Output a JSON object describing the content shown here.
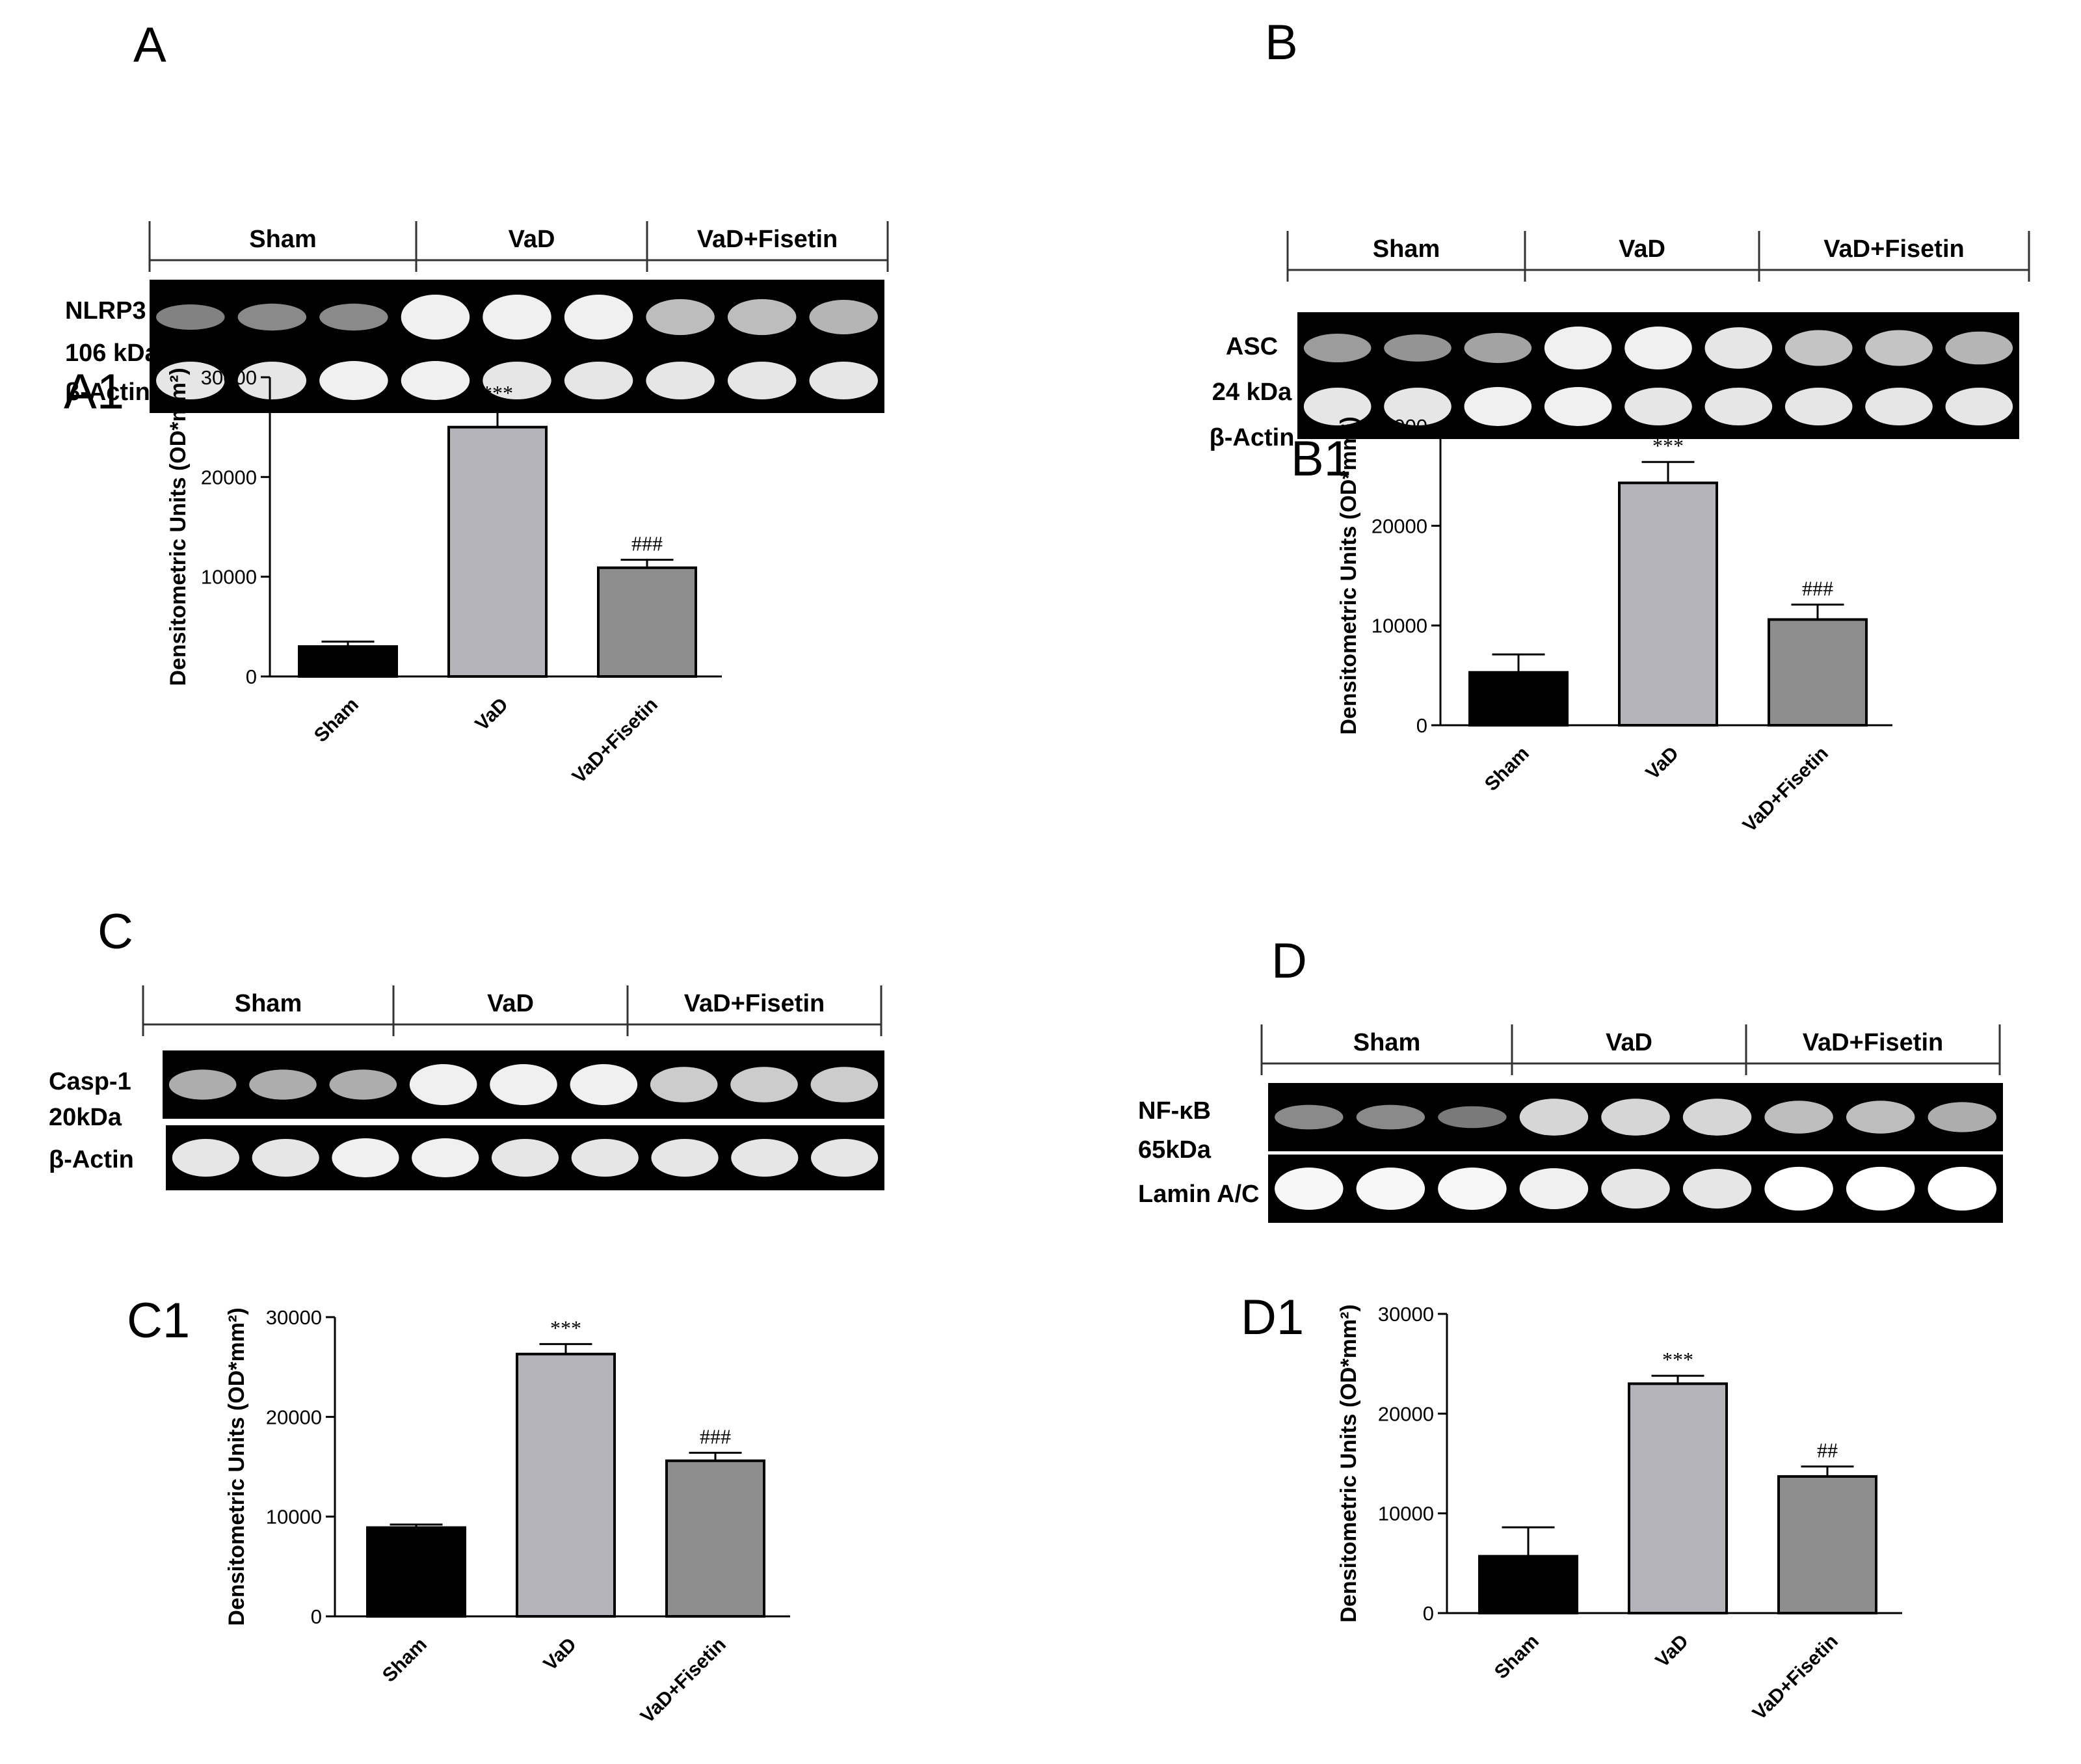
{
  "colors": {
    "sham": "#000000",
    "vad": "#b3b3b9",
    "vad_fisetin": "#8e8e8e",
    "blot_bg": "#000000",
    "band": "#ffffff"
  },
  "panels": [
    {
      "letter": "A",
      "groups": [
        "Sham",
        "VaD",
        "VaD+Fisetin"
      ],
      "target_label": "NLRP3",
      "target_size": "106 kDa",
      "control_label": "β-Actin",
      "target_band_intensity": [
        0.25,
        0.3,
        0.3,
        0.9,
        0.9,
        0.9,
        0.6,
        0.6,
        0.55
      ],
      "control_band_intensity": [
        0.85,
        0.85,
        0.9,
        0.9,
        0.85,
        0.85,
        0.85,
        0.85,
        0.85
      ]
    },
    {
      "letter": "B",
      "groups": [
        "Sham",
        "VaD",
        "VaD+Fisetin"
      ],
      "target_label": "ASC",
      "target_size": "24 kDa",
      "control_label": "β-Actin",
      "target_band_intensity": [
        0.4,
        0.35,
        0.45,
        0.9,
        0.9,
        0.85,
        0.65,
        0.65,
        0.55
      ],
      "control_band_intensity": [
        0.85,
        0.85,
        0.9,
        0.9,
        0.85,
        0.85,
        0.85,
        0.85,
        0.85
      ]
    },
    {
      "letter": "C",
      "groups": [
        "Sham",
        "VaD",
        "VaD+Fisetin"
      ],
      "target_label": "Casp-1",
      "target_size": "20kDa",
      "control_label": "β-Actin",
      "target_band_intensity": [
        0.5,
        0.5,
        0.5,
        0.9,
        0.9,
        0.9,
        0.7,
        0.7,
        0.7
      ],
      "control_band_intensity": [
        0.85,
        0.85,
        0.9,
        0.9,
        0.85,
        0.85,
        0.85,
        0.85,
        0.85
      ]
    },
    {
      "letter": "D",
      "groups": [
        "Sham",
        "VaD",
        "VaD+Fisetin"
      ],
      "target_label": "NF-κB",
      "target_size": "65kDa",
      "control_label": "Lamin A/C",
      "target_band_intensity": [
        0.3,
        0.3,
        0.2,
        0.75,
        0.75,
        0.75,
        0.6,
        0.6,
        0.5
      ],
      "control_band_intensity": [
        0.95,
        0.95,
        0.95,
        0.9,
        0.85,
        0.85,
        1.0,
        1.0,
        1.0
      ]
    }
  ],
  "chart_data": [
    {
      "letter": "A1",
      "type": "bar",
      "categories": [
        "Sham",
        "VaD",
        "VaD+Fisetin"
      ],
      "values": [
        3000,
        25000,
        10900
      ],
      "errors": [
        500,
        1800,
        800
      ],
      "significance": [
        "",
        "***",
        "###"
      ],
      "ylabel": "Densitometric Units (OD*mm²)",
      "yticks": [
        "0",
        "10000",
        "20000",
        "30000"
      ],
      "ylim": [
        0,
        30000
      ]
    },
    {
      "letter": "B1",
      "type": "bar",
      "categories": [
        "Sham",
        "VaD",
        "VaD+Fisetin"
      ],
      "values": [
        5300,
        24300,
        10600
      ],
      "errors": [
        1800,
        2100,
        1500
      ],
      "significance": [
        "",
        "***",
        "###"
      ],
      "ylabel": "Densitometric Units (OD*mm²)",
      "yticks": [
        "0",
        "10000",
        "20000",
        "30000"
      ],
      "ylim": [
        0,
        30000
      ]
    },
    {
      "letter": "C1",
      "type": "bar",
      "categories": [
        "Sham",
        "VaD",
        "VaD+Fisetin"
      ],
      "values": [
        8900,
        26300,
        15600
      ],
      "errors": [
        300,
        1000,
        800
      ],
      "significance": [
        "",
        "***",
        "###"
      ],
      "ylabel": "Densitometric Units (OD*mm²)",
      "yticks": [
        "0",
        "10000",
        "20000",
        "30000"
      ],
      "ylim": [
        0,
        30000
      ]
    },
    {
      "letter": "D1",
      "type": "bar",
      "categories": [
        "Sham",
        "VaD",
        "VaD+Fisetin"
      ],
      "values": [
        5700,
        23000,
        13700
      ],
      "errors": [
        2900,
        800,
        1000
      ],
      "significance": [
        "",
        "***",
        "##"
      ],
      "ylabel": "Densitometric Units (OD*mm²)",
      "yticks": [
        "0",
        "10000",
        "20000",
        "30000"
      ],
      "ylim": [
        0,
        30000
      ]
    }
  ]
}
